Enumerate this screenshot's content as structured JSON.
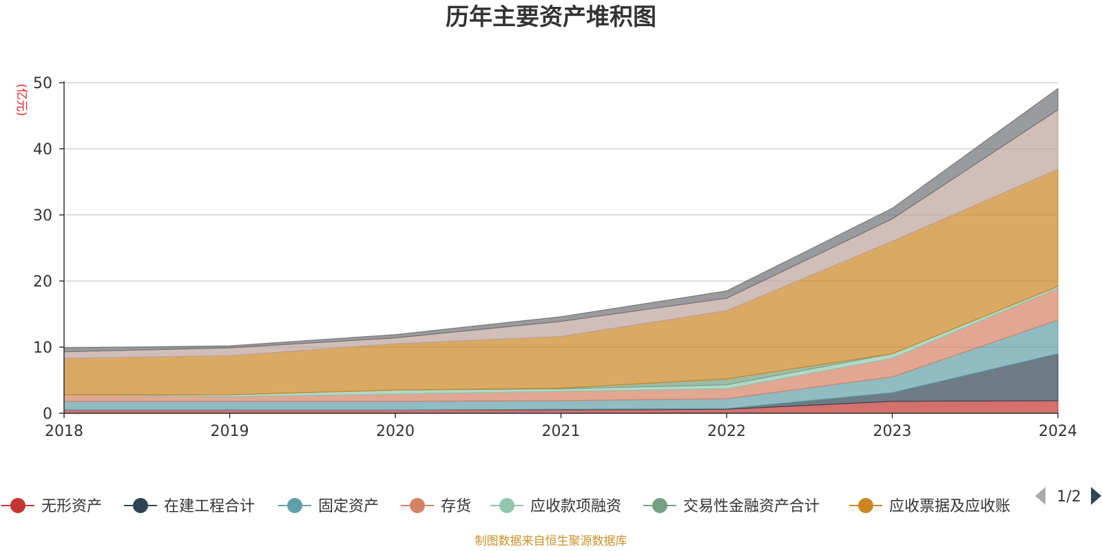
{
  "chart_data": {
    "type": "area",
    "stacked": true,
    "title": "历年主要资产堆积图",
    "unit_label": "(亿元)",
    "x": [
      "2018",
      "2019",
      "2020",
      "2021",
      "2022",
      "2023",
      "2024"
    ],
    "ylim": [
      0,
      50
    ],
    "yticks": [
      0,
      10,
      20,
      30,
      40,
      50
    ],
    "grid": true,
    "legend_position": "bottom",
    "legend_page": "1/2",
    "source": "制图数据来自恒生聚源数据库",
    "series": [
      {
        "name": "无形资产",
        "color": "#c23531",
        "values": [
          0.5,
          0.5,
          0.5,
          0.5,
          0.6,
          1.8,
          1.9
        ],
        "in_legend": true
      },
      {
        "name": "在建工程合计",
        "color": "#2f4554",
        "values": [
          0.0,
          0.0,
          0.0,
          0.1,
          0.1,
          1.3,
          7.1
        ],
        "in_legend": true
      },
      {
        "name": "固定资产",
        "color": "#61a0a8",
        "values": [
          1.3,
          1.3,
          1.3,
          1.3,
          1.5,
          2.4,
          5.1
        ],
        "in_legend": true
      },
      {
        "name": "存货",
        "color": "#d48265",
        "values": [
          1.0,
          0.7,
          1.1,
          1.4,
          1.5,
          2.8,
          4.8
        ],
        "in_legend": true
      },
      {
        "name": "应收款项融资",
        "color": "#91c7ae",
        "values": [
          0.0,
          0.3,
          0.6,
          0.4,
          0.6,
          0.7,
          0.3
        ],
        "in_legend": true
      },
      {
        "name": "交易性金融资产合计",
        "color": "#749f83",
        "values": [
          0.0,
          0.0,
          0.0,
          0.1,
          0.9,
          0.0,
          0.0
        ],
        "in_legend": true
      },
      {
        "name": "应收票据及应收账",
        "color": "#ca8622",
        "values": [
          5.5,
          5.9,
          7.0,
          7.8,
          10.3,
          17.0,
          17.7
        ],
        "in_legend": true
      },
      {
        "name": "",
        "color": "#bda29a",
        "values": [
          1.0,
          1.2,
          0.9,
          2.3,
          1.9,
          3.4,
          9.0
        ],
        "in_legend": false
      },
      {
        "name": "",
        "color": "#6e7074",
        "values": [
          0.6,
          0.3,
          0.5,
          0.7,
          1.1,
          1.6,
          3.2
        ],
        "in_legend": false
      }
    ]
  }
}
